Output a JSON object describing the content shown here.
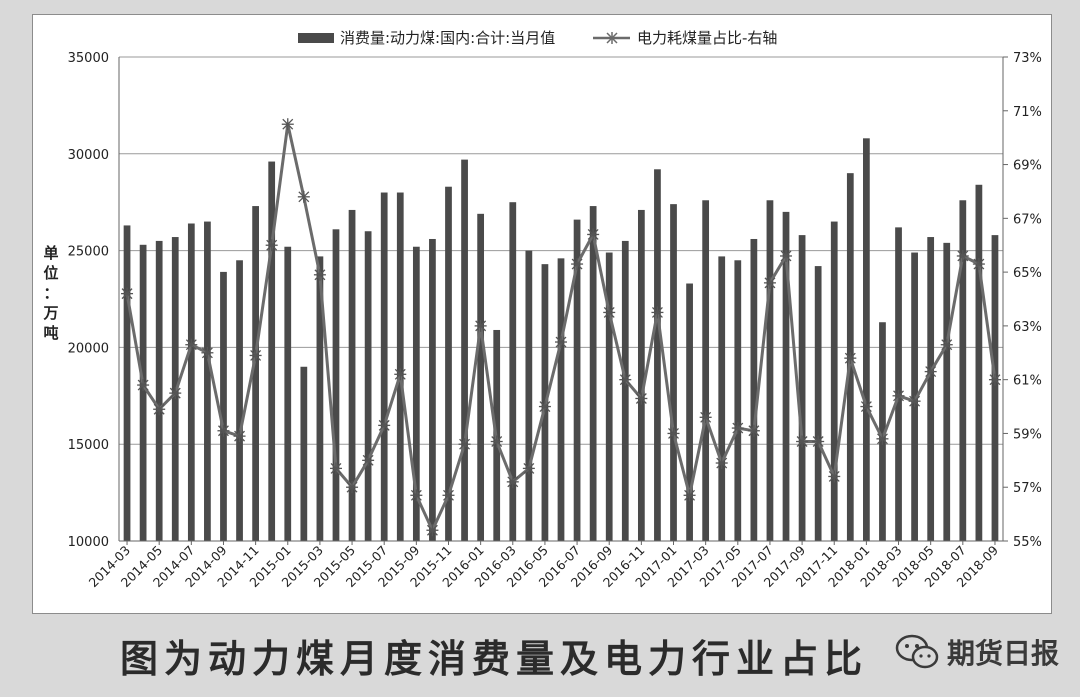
{
  "chart_data": {
    "type": "bar",
    "title": "",
    "xlabel": "",
    "ylabel": "单位：万吨",
    "ylabel_chars": [
      "单",
      "位",
      "：",
      "万",
      "吨"
    ],
    "ylim": [
      10000,
      35000
    ],
    "yticks": [
      "10000",
      "15000",
      "20000",
      "25000",
      "30000",
      "35000"
    ],
    "y2lim": [
      55,
      73
    ],
    "y2ticks": [
      "55%",
      "57%",
      "59%",
      "61%",
      "63%",
      "65%",
      "67%",
      "69%",
      "71%",
      "73%"
    ],
    "grid": true,
    "legend_position": "top",
    "categories": [
      "2014-03",
      "2014-04",
      "2014-05",
      "2014-06",
      "2014-07",
      "2014-08",
      "2014-09",
      "2014-10",
      "2014-11",
      "2014-12",
      "2015-01",
      "2015-02",
      "2015-03",
      "2015-04",
      "2015-05",
      "2015-06",
      "2015-07",
      "2015-08",
      "2015-09",
      "2015-10",
      "2015-11",
      "2015-12",
      "2016-01",
      "2016-02",
      "2016-03",
      "2016-04",
      "2016-05",
      "2016-06",
      "2016-07",
      "2016-08",
      "2016-09",
      "2016-10",
      "2016-11",
      "2016-12",
      "2017-01",
      "2017-02",
      "2017-03",
      "2017-04",
      "2017-05",
      "2017-06",
      "2017-07",
      "2017-08",
      "2017-09",
      "2017-10",
      "2017-11",
      "2017-12",
      "2018-01",
      "2018-02",
      "2018-03",
      "2018-04",
      "2018-05",
      "2018-06",
      "2018-07",
      "2018-08",
      "2018-09"
    ],
    "x_tick_labels": [
      "2014-03",
      "2014-05",
      "2014-07",
      "2014-09",
      "2014-11",
      "2015-01",
      "2015-03",
      "2015-05",
      "2015-07",
      "2015-09",
      "2015-11",
      "2016-01",
      "2016-03",
      "2016-05",
      "2016-07",
      "2016-09",
      "2016-11",
      "2017-01",
      "2017-03",
      "2017-05",
      "2017-07",
      "2017-09",
      "2017-11",
      "2018-01",
      "2018-03",
      "2018-05",
      "2018-07",
      "2018-09"
    ],
    "series": [
      {
        "name": "消费量:动力煤:国内:合计:当月值",
        "type": "bar",
        "axis": "left",
        "color": "#4a4a4a",
        "values": [
          26300,
          25300,
          25500,
          25700,
          26400,
          26500,
          23900,
          24500,
          27300,
          29600,
          25200,
          19000,
          24700,
          26100,
          27100,
          26000,
          28000,
          28000,
          25200,
          25600,
          28300,
          29700,
          26900,
          20900,
          27500,
          25000,
          24300,
          24600,
          26600,
          27300,
          24900,
          25500,
          27100,
          29200,
          27400,
          23300,
          27600,
          24700,
          24500,
          25600,
          27600,
          27000,
          25800,
          24200,
          26500,
          29000,
          30800,
          21300,
          26200,
          24900,
          25700,
          25400,
          27600,
          28400,
          25800
        ]
      },
      {
        "name": "电力耗煤量占比-右轴",
        "type": "line",
        "axis": "right",
        "color": "#6b6b6b",
        "values": [
          64.2,
          60.8,
          59.9,
          60.5,
          62.3,
          62.0,
          59.1,
          58.9,
          61.9,
          66.0,
          70.5,
          67.8,
          64.9,
          57.7,
          57.0,
          58.0,
          59.3,
          61.2,
          56.7,
          55.4,
          56.7,
          58.6,
          63.0,
          58.7,
          57.2,
          57.7,
          60.0,
          62.4,
          65.3,
          66.4,
          63.5,
          61.0,
          60.3,
          63.5,
          59.0,
          56.7,
          59.6,
          57.9,
          59.2,
          59.1,
          64.6,
          65.6,
          58.7,
          58.7,
          57.4,
          61.8,
          60.0,
          58.8,
          60.4,
          60.2,
          61.3,
          62.3,
          65.6,
          65.3,
          61.0
        ]
      }
    ]
  },
  "caption": {
    "title": "图为动力煤月度消费量及电力行业占比",
    "logo_text": "期货日报",
    "logo_icon": "wechat-icon"
  }
}
